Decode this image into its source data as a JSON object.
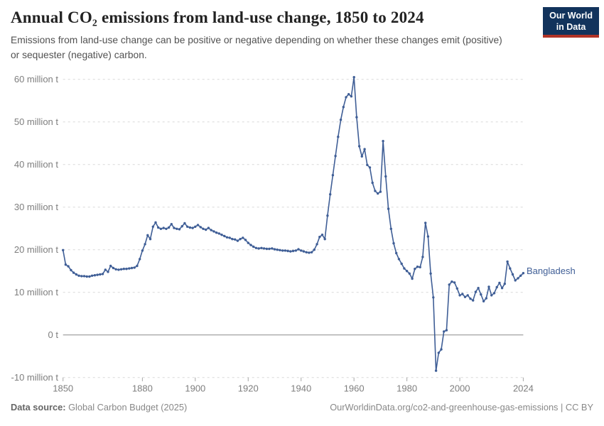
{
  "header": {
    "title": "Annual CO₂ emissions from land-use change, 1850 to 2024",
    "subtitle": "Emissions from land-use change can be positive or negative depending on whether these changes emit (positive) or sequester (negative) carbon.",
    "logo": {
      "line1": "Our World",
      "line2": "in Data"
    }
  },
  "chart_data": {
    "type": "line",
    "title": "Annual CO₂ emissions from land-use change, 1850 to 2024",
    "unit": "million tonnes of CO₂",
    "x_range": [
      1850,
      2024
    ],
    "x_ticks": [
      1850,
      1880,
      1900,
      1920,
      1940,
      1960,
      1980,
      2000,
      2024
    ],
    "y_ticks": [
      {
        "value": 60,
        "label": "60 million t"
      },
      {
        "value": 50,
        "label": "50 million t"
      },
      {
        "value": 40,
        "label": "40 million t"
      },
      {
        "value": 30,
        "label": "30 million t"
      },
      {
        "value": 20,
        "label": "20 million t"
      },
      {
        "value": 10,
        "label": "10 million t"
      },
      {
        "value": 0,
        "label": "0 t"
      },
      {
        "value": -10,
        "label": "-10 million t"
      }
    ],
    "ylim": [
      -12,
      62
    ],
    "grid": true,
    "legend_position": "end-of-line",
    "series": [
      {
        "name": "Bangladesh",
        "color": "#3f5e96",
        "x_start_year": 1850,
        "x_step": 1,
        "values": [
          19.9,
          16.5,
          16.1,
          15.2,
          14.6,
          14.2,
          13.9,
          13.8,
          13.8,
          13.7,
          13.7,
          13.9,
          14.0,
          14.1,
          14.2,
          14.3,
          15.3,
          14.8,
          16.2,
          15.7,
          15.4,
          15.3,
          15.4,
          15.5,
          15.5,
          15.6,
          15.7,
          15.8,
          16.2,
          17.8,
          19.8,
          21.3,
          23.4,
          22.5,
          25.4,
          26.4,
          25.2,
          24.9,
          25.1,
          24.9,
          25.2,
          26.0,
          25.1,
          24.9,
          24.8,
          25.5,
          26.2,
          25.4,
          25.2,
          25.1,
          25.4,
          25.8,
          25.3,
          24.9,
          24.7,
          25.1,
          24.6,
          24.3,
          24.0,
          23.8,
          23.5,
          23.2,
          22.9,
          22.8,
          22.5,
          22.4,
          22.1,
          22.5,
          22.8,
          22.3,
          21.6,
          21.1,
          20.7,
          20.4,
          20.3,
          20.4,
          20.3,
          20.2,
          20.2,
          20.3,
          20.1,
          20.0,
          19.9,
          19.8,
          19.8,
          19.7,
          19.6,
          19.7,
          19.8,
          20.1,
          19.8,
          19.6,
          19.4,
          19.3,
          19.4,
          20.0,
          21.3,
          23.0,
          23.5,
          22.5,
          28.0,
          33.0,
          37.5,
          42.0,
          46.5,
          50.5,
          53.5,
          55.8,
          56.5,
          56.0,
          60.5,
          51.1,
          44.3,
          41.9,
          43.6,
          39.9,
          39.3,
          35.7,
          33.8,
          33.2,
          33.6,
          45.5,
          37.2,
          29.6,
          24.9,
          21.5,
          19.2,
          17.8,
          16.7,
          15.6,
          15.0,
          14.4,
          13.2,
          15.5,
          16.0,
          15.9,
          18.3,
          26.3,
          23.1,
          14.4,
          8.8,
          -8.4,
          -4.2,
          -3.4,
          0.8,
          1.1,
          11.8,
          12.5,
          12.3,
          10.9,
          9.3,
          9.6,
          8.9,
          9.3,
          8.5,
          8.1,
          10.1,
          11.0,
          9.5,
          7.9,
          8.6,
          11.3,
          9.3,
          9.8,
          11.2,
          12.2,
          11.0,
          12.0,
          17.2,
          15.6,
          14.2,
          12.8,
          13.3,
          13.9,
          14.5
        ]
      }
    ]
  },
  "footer": {
    "source_label": "Data source:",
    "source_value": " Global Carbon Budget (2025)",
    "attribution": "OurWorldinData.org/co2-and-greenhouse-gas-emissions | CC BY"
  },
  "colors": {
    "line": "#3f5e96",
    "logo_bg": "#12335c",
    "logo_red": "#b13327",
    "grid": "#d9d9d9",
    "zero_line": "#8c8c8c",
    "axis_text": "#7e7e7e"
  }
}
